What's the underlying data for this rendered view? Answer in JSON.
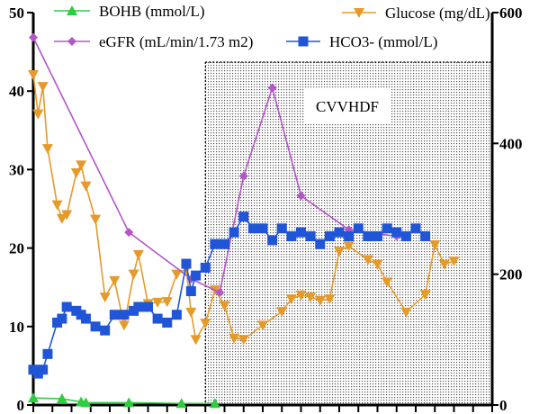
{
  "chart_data": {
    "type": "line",
    "left_axis": {
      "ticks": [
        "0",
        "10",
        "20",
        "30",
        "40",
        "50"
      ],
      "ylim": [
        0,
        50
      ]
    },
    "right_axis": {
      "ticks": [
        "0",
        "200",
        "400",
        "600"
      ],
      "ylim": [
        0,
        600
      ]
    },
    "x_index_range": [
      0,
      48
    ],
    "shaded_region": {
      "label": "CVVHDF",
      "x_start": 18,
      "x_end": 48
    },
    "legend": [
      {
        "key": "bohb",
        "label": "BOHB (mmol/L)"
      },
      {
        "key": "glucose",
        "label": "Glucose (mg/dL)"
      },
      {
        "key": "egfr",
        "label": "eGFR (mL/min/1.73 m2)"
      },
      {
        "key": "hco3",
        "label": "HCO3- (mmol/L)"
      }
    ],
    "series": [
      {
        "name": "BOHB (mmol/L)",
        "key": "bohb",
        "axis": "left",
        "color": "#2ecc40",
        "marker": "triangle-up",
        "x": [
          0,
          3,
          5,
          5.5,
          10,
          15.5,
          19
        ],
        "y": [
          0.9,
          0.8,
          0.4,
          0.3,
          0.3,
          0.2,
          0.2
        ]
      },
      {
        "name": "Glucose (mg/dL)",
        "key": "glucose",
        "axis": "right",
        "color": "#e59a2a",
        "marker": "triangle-down",
        "x": [
          0,
          0.5,
          1,
          1.5,
          2.5,
          3,
          3.5,
          4.5,
          5,
          5.5,
          6.5,
          7.5,
          8.5,
          9.5,
          10.5,
          11,
          12,
          13,
          14,
          15,
          16,
          16.5,
          17,
          18,
          19,
          20,
          21,
          22,
          24,
          26,
          27,
          28,
          29,
          30,
          31,
          32,
          33,
          35,
          36,
          37,
          39,
          41,
          42,
          43,
          44
        ],
        "y": [
          505,
          445,
          487,
          392,
          306,
          285,
          291,
          355,
          367,
          335,
          284,
          165,
          190,
          122,
          200,
          230,
          155,
          157,
          158,
          200,
          208,
          142,
          100,
          125,
          176,
          152,
          102,
          100,
          122,
          143,
          162,
          168,
          165,
          160,
          162,
          235,
          243,
          222,
          215,
          188,
          142,
          169,
          245,
          215,
          220
        ]
      },
      {
        "name": "eGFR (mL/min/1.73 m2)",
        "key": "egfr",
        "axis": "right",
        "color": "#b455c8",
        "marker": "diamond",
        "x": [
          0,
          10,
          16.5,
          19.5,
          22,
          25,
          28,
          33,
          38
        ],
        "y": [
          562,
          264,
          193,
          172,
          350,
          485,
          320,
          268,
          258
        ]
      },
      {
        "name": "HCO3- (mmol/L)",
        "key": "hco3",
        "axis": "left",
        "color": "#1f55d6",
        "marker": "square",
        "x": [
          0,
          0.5,
          1,
          1.5,
          2.5,
          3,
          3.5,
          4.5,
          5,
          5.5,
          6.5,
          7.5,
          8.5,
          9.5,
          10.5,
          11,
          12,
          13,
          14,
          15,
          16,
          16.5,
          17,
          18,
          19,
          20,
          21,
          22,
          23,
          24,
          25,
          26,
          27,
          28,
          29,
          30,
          31,
          32,
          33,
          34,
          35,
          36,
          37,
          38,
          39,
          40,
          41
        ],
        "y": [
          4.5,
          4.0,
          4.5,
          6.5,
          10.5,
          11.0,
          12.5,
          12.0,
          11.5,
          11.0,
          10.0,
          9.5,
          11.5,
          11.5,
          12.0,
          12.5,
          12.5,
          11.0,
          10.5,
          11.5,
          18.0,
          14.5,
          16.5,
          17.5,
          20.5,
          20.5,
          22.0,
          24.0,
          22.5,
          22.5,
          21.0,
          22.5,
          21.5,
          22.0,
          21.5,
          20.5,
          21.5,
          22.0,
          21.5,
          22.5,
          21.5,
          21.5,
          22.5,
          22.0,
          21.5,
          22.5,
          21.5
        ]
      }
    ]
  }
}
